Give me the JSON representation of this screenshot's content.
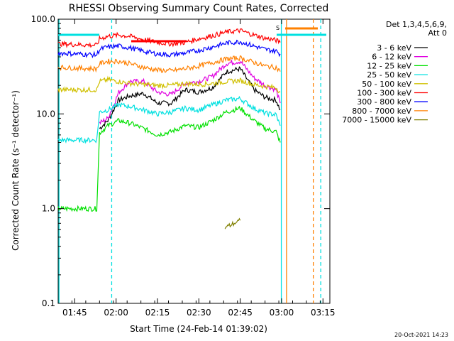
{
  "chart_data": {
    "type": "line",
    "title": "RHESSI Observing Summary Count Rates, Corrected",
    "xlabel": "Start Time (24-Feb-14 01:39:02)",
    "ylabel": "Corrected Count Rate (s⁻¹ detector⁻¹)",
    "y_scale": "log",
    "ylim": [
      0.1,
      100.0
    ],
    "xlim_minutes": [
      99.0,
      197.5
    ],
    "x_ticks": [
      {
        "label": "01:45",
        "minute": 105
      },
      {
        "label": "02:00",
        "minute": 120
      },
      {
        "label": "02:15",
        "minute": 135
      },
      {
        "label": "02:30",
        "minute": 150
      },
      {
        "label": "02:45",
        "minute": 165
      },
      {
        "label": "03:00",
        "minute": 180
      },
      {
        "label": "03:15",
        "minute": 195
      }
    ],
    "y_ticks": [
      {
        "label": "100.0",
        "value": 100
      },
      {
        "label": "10.0",
        "value": 10
      },
      {
        "label": "1.0",
        "value": 1
      },
      {
        "label": "0.1",
        "value": 0.1
      }
    ],
    "legend_header": [
      "Det 1,3,4,5,6,9,",
      "Att 0"
    ],
    "legend_position": "right",
    "footer_date": "20-Oct-2021 14:23",
    "flag_label": "S",
    "series": [
      {
        "name": "3 - 6 keV",
        "color": "#000000",
        "points": [
          [
            114,
            7.0
          ],
          [
            117,
            8.5
          ],
          [
            121,
            14
          ],
          [
            125,
            15.5
          ],
          [
            130,
            16.5
          ],
          [
            135,
            13
          ],
          [
            140,
            13
          ],
          [
            145,
            18
          ],
          [
            150,
            17
          ],
          [
            155,
            19
          ],
          [
            160,
            28
          ],
          [
            165,
            30
          ],
          [
            170,
            18
          ],
          [
            174,
            15
          ],
          [
            178,
            14
          ],
          [
            179.5,
            11
          ]
        ]
      },
      {
        "name": "6 - 12 keV",
        "color": "#e000e0",
        "points": [
          [
            114,
            8.0
          ],
          [
            117,
            9.0
          ],
          [
            121,
            17
          ],
          [
            125,
            22
          ],
          [
            130,
            22
          ],
          [
            135,
            17
          ],
          [
            140,
            16
          ],
          [
            145,
            21
          ],
          [
            150,
            22
          ],
          [
            155,
            25
          ],
          [
            160,
            34
          ],
          [
            165,
            36
          ],
          [
            170,
            24
          ],
          [
            174,
            20
          ],
          [
            178,
            18
          ],
          [
            179.5,
            13
          ]
        ]
      },
      {
        "name": "12 - 25 keV",
        "color": "#00e000",
        "points": [
          [
            99,
            1.0
          ],
          [
            113,
            1.0
          ],
          [
            114,
            6.3
          ],
          [
            117,
            7.5
          ],
          [
            121,
            8.5
          ],
          [
            125,
            8.0
          ],
          [
            130,
            7.0
          ],
          [
            135,
            6.0
          ],
          [
            140,
            6.5
          ],
          [
            145,
            7.5
          ],
          [
            150,
            7.2
          ],
          [
            155,
            8.5
          ],
          [
            160,
            10.5
          ],
          [
            165,
            11.5
          ],
          [
            170,
            8.5
          ],
          [
            174,
            7.0
          ],
          [
            178,
            6.5
          ],
          [
            179.5,
            5.0
          ]
        ]
      },
      {
        "name": "25 - 50 keV",
        "color": "#00e0e0",
        "points": [
          [
            99,
            5.3
          ],
          [
            113,
            5.3
          ],
          [
            114,
            10.5
          ],
          [
            117,
            11
          ],
          [
            121,
            12.5
          ],
          [
            125,
            12
          ],
          [
            130,
            11
          ],
          [
            135,
            10
          ],
          [
            140,
            10.5
          ],
          [
            145,
            11.5
          ],
          [
            150,
            11
          ],
          [
            155,
            12.5
          ],
          [
            160,
            14
          ],
          [
            165,
            14.5
          ],
          [
            170,
            11.5
          ],
          [
            174,
            10.2
          ],
          [
            178,
            9.8
          ],
          [
            179.5,
            7.5
          ]
        ]
      },
      {
        "name": "50 - 100 keV",
        "color": "#d0c000",
        "points": [
          [
            99,
            18
          ],
          [
            113,
            18
          ],
          [
            114,
            22
          ],
          [
            117,
            23
          ],
          [
            121,
            22
          ],
          [
            125,
            21
          ],
          [
            130,
            20.5
          ],
          [
            135,
            20
          ],
          [
            140,
            20
          ],
          [
            145,
            21
          ],
          [
            150,
            20.5
          ],
          [
            155,
            21
          ],
          [
            160,
            22
          ],
          [
            165,
            22.5
          ],
          [
            170,
            20.5
          ],
          [
            174,
            19.5
          ],
          [
            178,
            19
          ],
          [
            179.5,
            17
          ]
        ]
      },
      {
        "name": "100 - 300 keV",
        "color": "#ff0000",
        "points": [
          [
            99,
            55
          ],
          [
            113,
            53
          ],
          [
            114,
            62
          ],
          [
            117,
            66
          ],
          [
            121,
            68
          ],
          [
            125,
            66
          ],
          [
            130,
            61
          ],
          [
            135,
            57
          ],
          [
            140,
            55
          ],
          [
            145,
            57
          ],
          [
            150,
            62
          ],
          [
            155,
            67
          ],
          [
            160,
            73
          ],
          [
            165,
            76
          ],
          [
            170,
            68
          ],
          [
            174,
            63
          ],
          [
            178,
            60
          ],
          [
            179.5,
            57
          ]
        ]
      },
      {
        "name": "300 - 800 keV",
        "color": "#0000ff",
        "points": [
          [
            99,
            44
          ],
          [
            113,
            42
          ],
          [
            114,
            48
          ],
          [
            117,
            51
          ],
          [
            121,
            52
          ],
          [
            125,
            50
          ],
          [
            130,
            46
          ],
          [
            135,
            43
          ],
          [
            140,
            42
          ],
          [
            145,
            44
          ],
          [
            150,
            47
          ],
          [
            155,
            51
          ],
          [
            160,
            56
          ],
          [
            165,
            58
          ],
          [
            170,
            52
          ],
          [
            174,
            48
          ],
          [
            178,
            46
          ],
          [
            179.5,
            43
          ]
        ]
      },
      {
        "name": "800 - 7000 keV",
        "color": "#ff8000",
        "points": [
          [
            99,
            31
          ],
          [
            113,
            30
          ],
          [
            114,
            34
          ],
          [
            117,
            36
          ],
          [
            121,
            36
          ],
          [
            125,
            34
          ],
          [
            130,
            31
          ],
          [
            135,
            29
          ],
          [
            140,
            28.5
          ],
          [
            145,
            30
          ],
          [
            150,
            32
          ],
          [
            155,
            35
          ],
          [
            160,
            38
          ],
          [
            165,
            39
          ],
          [
            170,
            35
          ],
          [
            174,
            32
          ],
          [
            178,
            31
          ],
          [
            179.5,
            28
          ]
        ]
      },
      {
        "name": "7000 - 15000 keV",
        "color": "#808000",
        "points": [
          [
            159.5,
            0.63
          ],
          [
            165,
            0.75
          ]
        ]
      }
    ],
    "vertical_lines": [
      {
        "minute": 99.3,
        "color": "#00e0e0",
        "style": "solid"
      },
      {
        "minute": 118.4,
        "color": "#00e0e0",
        "style": "dashed"
      },
      {
        "minute": 179.9,
        "color": "#00e0e0",
        "style": "solid"
      },
      {
        "minute": 181.8,
        "color": "#ff8000",
        "style": "solid"
      },
      {
        "minute": 191.5,
        "color": "#ff8000",
        "style": "dashed"
      },
      {
        "minute": 194.2,
        "color": "#00e0e0",
        "style": "dashed"
      }
    ]
  }
}
